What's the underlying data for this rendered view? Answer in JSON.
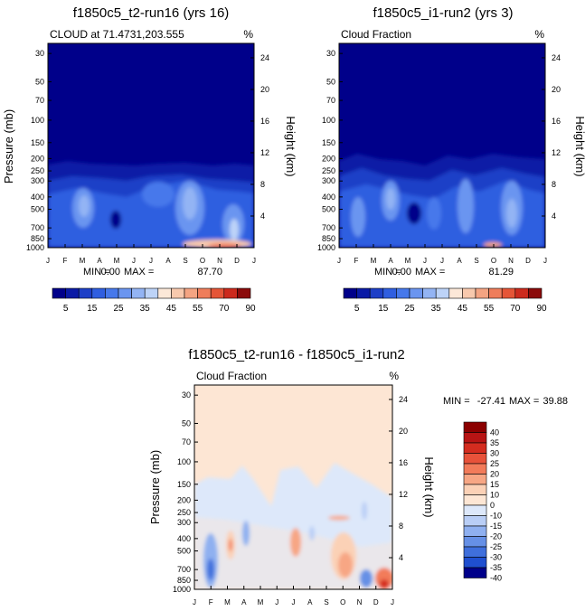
{
  "chart_data": [
    {
      "type": "heatmap",
      "title": "f1850c5_t2-run16 (yrs 16)",
      "subtitle_left": "CLOUD at 71.4731,203.555",
      "units": "%",
      "ylabel": "Pressure (mb)",
      "ylabel_right": "Height (km)",
      "x_ticks": [
        "J",
        "F",
        "M",
        "A",
        "M",
        "J",
        "J",
        "A",
        "S",
        "O",
        "N",
        "D",
        "J"
      ],
      "y_ticks": [
        "30",
        "50",
        "70",
        "100",
        "150",
        "200",
        "250",
        "300",
        "400",
        "500",
        "700",
        "850",
        "1000"
      ],
      "y_right_ticks": [
        "24",
        "20",
        "16",
        "12",
        "8",
        "4"
      ],
      "stats": {
        "min": "0.00",
        "max": "87.70"
      },
      "min_label": "MIN =",
      "max_label": "MAX =",
      "colorbar_labels": [
        "5",
        "15",
        "25",
        "35",
        "45",
        "55",
        "70",
        "90"
      ]
    },
    {
      "type": "heatmap",
      "title": "f1850c5_i1-run2 (yrs 3)",
      "subtitle_left": "Cloud Fraction",
      "units": "%",
      "ylabel": "Pressure (mb)",
      "ylabel_right": "Height (km)",
      "x_ticks": [
        "J",
        "F",
        "M",
        "A",
        "M",
        "J",
        "J",
        "A",
        "S",
        "O",
        "N",
        "D",
        "J"
      ],
      "y_ticks": [
        "30",
        "50",
        "70",
        "100",
        "150",
        "200",
        "250",
        "300",
        "400",
        "500",
        "700",
        "850",
        "1000"
      ],
      "y_right_ticks": [
        "24",
        "20",
        "16",
        "12",
        "8",
        "4"
      ],
      "stats": {
        "min": "0.00",
        "max": "81.29"
      },
      "min_label": "MIN =",
      "max_label": "MAX =",
      "colorbar_labels": [
        "5",
        "15",
        "25",
        "35",
        "45",
        "55",
        "70",
        "90"
      ]
    },
    {
      "type": "heatmap",
      "title": "f1850c5_t2-run16 - f1850c5_i1-run2",
      "subtitle_left": "Cloud Fraction",
      "units": "%",
      "ylabel": "Pressure (mb)",
      "ylabel_right": "Height (km)",
      "x_ticks": [
        "J",
        "F",
        "M",
        "A",
        "M",
        "J",
        "J",
        "A",
        "S",
        "O",
        "N",
        "D",
        "J"
      ],
      "y_ticks": [
        "30",
        "50",
        "70",
        "100",
        "150",
        "200",
        "250",
        "300",
        "400",
        "500",
        "700",
        "850",
        "1000"
      ],
      "y_right_ticks": [
        "24",
        "20",
        "16",
        "12",
        "8",
        "4"
      ],
      "stats": {
        "min": "-27.41",
        "max": "39.88"
      },
      "min_label": "MIN =",
      "max_label": "MAX =",
      "colorbar_labels": [
        "40",
        "35",
        "30",
        "25",
        "20",
        "15",
        "10",
        "0",
        "-10",
        "-15",
        "-20",
        "-25",
        "-30",
        "-35",
        "-40"
      ]
    }
  ],
  "colors": {
    "absolute_scale": [
      "#00008a",
      "#0a1aa6",
      "#1d3fc7",
      "#2f5ee0",
      "#4678eb",
      "#6b95f0",
      "#93b4f4",
      "#bdd3f8",
      "#fce8d8",
      "#f8c9ad",
      "#f4a482",
      "#ef7d5b",
      "#e55537",
      "#cc2a1d",
      "#8b0a0a"
    ],
    "diff_scale": [
      "#8b0000",
      "#b81414",
      "#d42c1f",
      "#e8523a",
      "#f27b5a",
      "#f7a684",
      "#fbd1b6",
      "#fde6d4",
      "#dde8fa",
      "#b9cef6",
      "#8fb0f0",
      "#6690e6",
      "#3f6fdc",
      "#1f4fd0",
      "#00008a"
    ]
  }
}
